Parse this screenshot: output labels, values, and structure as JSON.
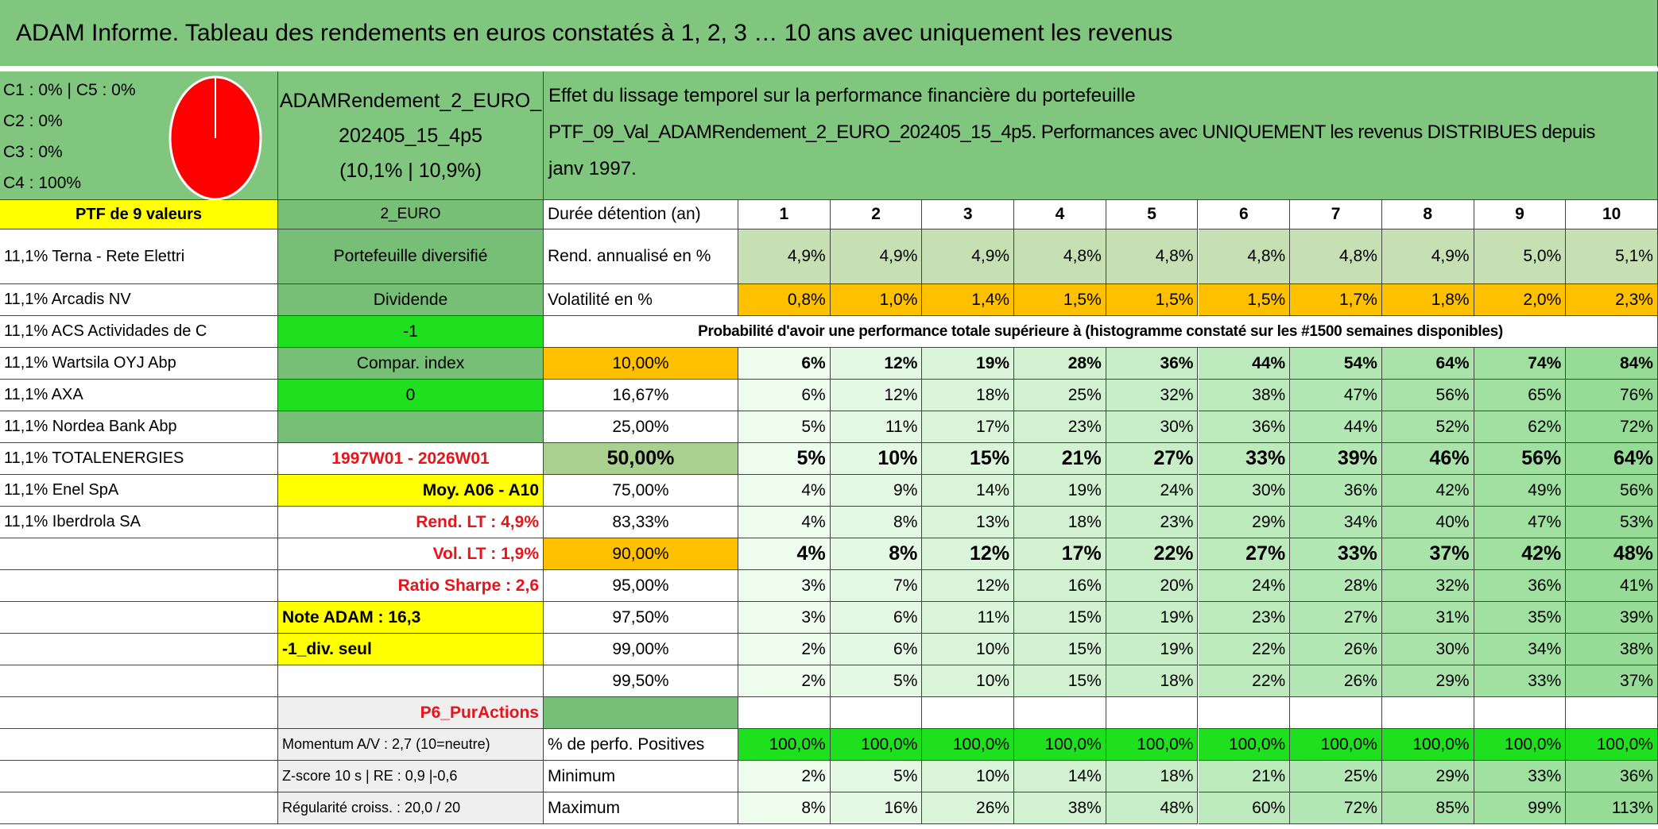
{
  "header": {
    "title": "ADAM Informe. Tableau des rendements en euros constatés à 1, 2, 3 … 10 ans avec uniquement les revenus",
    "allocation": [
      "C1 : 0% | C5 : 0%",
      "C2 : 0%",
      "C3 : 0%",
      "C4 : 100%"
    ],
    "portfolio": [
      "ADAMRendement_2_EURO_",
      "202405_15_4p5",
      "(10,1% | 10,9%)"
    ],
    "description": [
      "Effet du lissage temporel sur la performance financière du portefeuille",
      "PTF_09_Val_ADAMRendement_2_EURO_202405_15_4p5. Performances avec UNIQUEMENT les revenus DISTRIBUES depuis",
      "janv 1997."
    ]
  },
  "table": {
    "rows": [
      [
        "PTF de 9 valeurs",
        "2_EURO",
        "Durée détention (an)",
        "1",
        "2",
        "3",
        "4",
        "5",
        "6",
        "7",
        "8",
        "9",
        "10"
      ],
      [
        "11,1% Terna - Rete Elettri",
        "Portefeuille diversifié",
        "Rend. annualisé en %",
        "4,9%",
        "4,9%",
        "4,9%",
        "4,8%",
        "4,8%",
        "4,8%",
        "4,8%",
        "4,9%",
        "5,0%",
        "5,1%"
      ],
      [
        "11,1% Arcadis NV",
        "Dividende",
        "Volatilité en %",
        "0,8%",
        "1,0%",
        "1,4%",
        "1,5%",
        "1,5%",
        "1,5%",
        "1,7%",
        "1,8%",
        "2,0%",
        "2,3%"
      ],
      [
        "11,1% ACS Actividades de C",
        "-1",
        "Probabilité d'avoir une performance totale supérieure à (histogramme constaté sur les #1500 semaines disponibles)",
        null,
        null,
        null,
        null,
        null,
        null,
        null,
        null,
        null,
        null
      ],
      [
        "11,1% Wartsila OYJ Abp",
        "Compar. index",
        "10,00%",
        "6%",
        "12%",
        "19%",
        "28%",
        "36%",
        "44%",
        "54%",
        "64%",
        "74%",
        "84%"
      ],
      [
        "11,1% AXA",
        "0",
        "16,67%",
        "6%",
        "12%",
        "18%",
        "25%",
        "32%",
        "38%",
        "47%",
        "56%",
        "65%",
        "76%"
      ],
      [
        "11,1% Nordea Bank Abp",
        null,
        "25,00%",
        "5%",
        "11%",
        "17%",
        "23%",
        "30%",
        "36%",
        "44%",
        "52%",
        "62%",
        "72%"
      ],
      [
        "11,1% TOTALENERGIES",
        "1997W01 - 2026W01",
        "50,00%",
        "5%",
        "10%",
        "15%",
        "21%",
        "27%",
        "33%",
        "39%",
        "46%",
        "56%",
        "64%"
      ],
      [
        "11,1% Enel SpA",
        "Moy. A06 - A10",
        "75,00%",
        "4%",
        "9%",
        "14%",
        "19%",
        "24%",
        "30%",
        "36%",
        "42%",
        "49%",
        "56%"
      ],
      [
        "11,1% Iberdrola SA",
        "Rend. LT : 4,9%",
        "83,33%",
        "4%",
        "8%",
        "13%",
        "18%",
        "23%",
        "29%",
        "34%",
        "40%",
        "47%",
        "53%"
      ],
      [
        null,
        "Vol. LT : 1,9%",
        "90,00%",
        "4%",
        "8%",
        "12%",
        "17%",
        "22%",
        "27%",
        "33%",
        "37%",
        "42%",
        "48%"
      ],
      [
        null,
        "Ratio Sharpe : 2,6",
        "95,00%",
        "3%",
        "7%",
        "12%",
        "16%",
        "20%",
        "24%",
        "28%",
        "32%",
        "36%",
        "41%"
      ],
      [
        null,
        "Note ADAM : 16,3",
        "97,50%",
        "3%",
        "6%",
        "11%",
        "15%",
        "19%",
        "23%",
        "27%",
        "31%",
        "35%",
        "39%"
      ],
      [
        null,
        "-1_div. seul",
        "99,00%",
        "2%",
        "6%",
        "10%",
        "15%",
        "19%",
        "22%",
        "26%",
        "30%",
        "34%",
        "38%"
      ],
      [
        null,
        null,
        "99,50%",
        "2%",
        "5%",
        "10%",
        "15%",
        "18%",
        "22%",
        "26%",
        "29%",
        "33%",
        "37%"
      ],
      [
        null,
        "P6_PurActions",
        null,
        null,
        null,
        null,
        null,
        null,
        null,
        null,
        null,
        null,
        null
      ],
      [
        null,
        "Momentum A/V : 2,7 (10=neutre)",
        "% de perfo. Positives",
        "100,0%",
        "100,0%",
        "100,0%",
        "100,0%",
        "100,0%",
        "100,0%",
        "100,0%",
        "100,0%",
        "100,0%",
        "100,0%"
      ],
      [
        null,
        "Z-score 10 s | RE : 0,9 |-0,6",
        "Minimum",
        "2%",
        "5%",
        "10%",
        "14%",
        "18%",
        "21%",
        "25%",
        "29%",
        "33%",
        "36%"
      ],
      [
        null,
        "Régularité croiss. : 20,0 / 20",
        "Maximum",
        "8%",
        "16%",
        "26%",
        "38%",
        "48%",
        "60%",
        "72%",
        "85%",
        "99%",
        "113%"
      ]
    ]
  }
}
